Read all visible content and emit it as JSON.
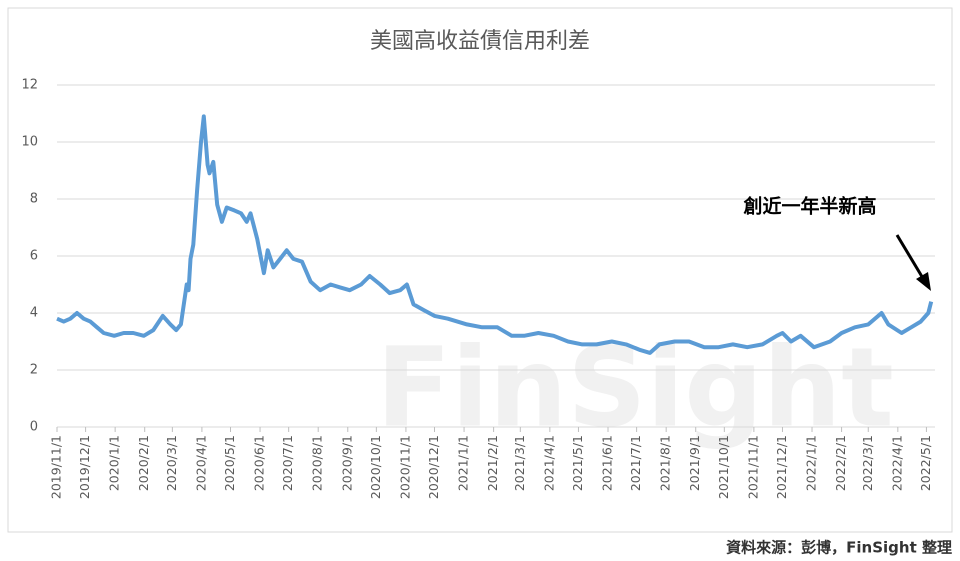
{
  "chart_data": {
    "type": "line",
    "title": "美國高收益債信用利差",
    "annotation": "創近一年半新高",
    "source": "資料來源：彭博，FinSight 整理",
    "watermark": "FinSight",
    "xlim": [
      "2019/11/1",
      "2022/5/10"
    ],
    "xticks": [
      "2019/11/1",
      "2019/12/1",
      "2020/1/1",
      "2020/2/1",
      "2020/3/1",
      "2020/4/1",
      "2020/5/1",
      "2020/6/1",
      "2020/7/1",
      "2020/8/1",
      "2020/9/1",
      "2020/10/1",
      "2020/11/1",
      "2020/12/1",
      "2021/1/1",
      "2021/2/1",
      "2021/3/1",
      "2021/4/1",
      "2021/5/1",
      "2021/6/1",
      "2021/7/1",
      "2021/8/1",
      "2021/9/1",
      "2021/10/1",
      "2021/11/1",
      "2021/12/1",
      "2022/1/1",
      "2022/2/1",
      "2022/3/1",
      "2022/4/1",
      "2022/5/1"
    ],
    "ylim": [
      0,
      12
    ],
    "yticks": [
      0,
      2,
      4,
      6,
      8,
      10,
      12
    ],
    "grid": true,
    "x": [
      "2019/11/1",
      "2019/11/8",
      "2019/11/15",
      "2019/11/22",
      "2019/11/29",
      "2019/12/6",
      "2019/12/13",
      "2019/12/20",
      "2019/12/31",
      "2020/1/10",
      "2020/1/20",
      "2020/1/31",
      "2020/2/10",
      "2020/2/20",
      "2020/2/28",
      "2020/3/5",
      "2020/3/10",
      "2020/3/13",
      "2020/3/16",
      "2020/3/18",
      "2020/3/20",
      "2020/3/23",
      "2020/3/27",
      "2020/3/31",
      "2020/4/3",
      "2020/4/7",
      "2020/4/9",
      "2020/4/13",
      "2020/4/17",
      "2020/4/22",
      "2020/4/27",
      "2020/5/5",
      "2020/5/12",
      "2020/5/18",
      "2020/5/22",
      "2020/5/29",
      "2020/6/5",
      "2020/6/9",
      "2020/6/15",
      "2020/6/22",
      "2020/6/29",
      "2020/7/6",
      "2020/7/15",
      "2020/7/24",
      "2020/8/3",
      "2020/8/14",
      "2020/8/24",
      "2020/9/3",
      "2020/9/15",
      "2020/9/24",
      "2020/10/5",
      "2020/10/15",
      "2020/10/26",
      "2020/11/2",
      "2020/11/9",
      "2020/11/20",
      "2020/12/1",
      "2020/12/15",
      "2021/1/4",
      "2021/1/20",
      "2021/2/5",
      "2021/2/20",
      "2021/3/5",
      "2021/3/20",
      "2021/4/5",
      "2021/4/20",
      "2021/5/5",
      "2021/5/20",
      "2021/6/5",
      "2021/6/20",
      "2021/7/5",
      "2021/7/15",
      "2021/7/25",
      "2021/8/10",
      "2021/8/25",
      "2021/9/10",
      "2021/9/25",
      "2021/10/10",
      "2021/10/25",
      "2021/11/10",
      "2021/11/25",
      "2021/12/1",
      "2021/12/10",
      "2021/12/20",
      "2022/1/3",
      "2022/1/20",
      "2022/2/1",
      "2022/2/15",
      "2022/3/1",
      "2022/3/15",
      "2022/3/22",
      "2022/4/5",
      "2022/4/15",
      "2022/4/25",
      "2022/5/3",
      "2022/5/6"
    ],
    "series": [
      {
        "color": "#5b9bd5",
        "values": [
          3.8,
          3.7,
          3.8,
          4.0,
          3.8,
          3.7,
          3.5,
          3.3,
          3.2,
          3.3,
          3.3,
          3.2,
          3.4,
          3.9,
          3.6,
          3.4,
          3.6,
          4.3,
          5.0,
          4.8,
          5.9,
          6.4,
          8.3,
          10.0,
          10.9,
          9.2,
          8.9,
          9.3,
          7.8,
          7.2,
          7.7,
          7.6,
          7.5,
          7.2,
          7.5,
          6.6,
          5.4,
          6.2,
          5.6,
          5.9,
          6.2,
          5.9,
          5.8,
          5.1,
          4.8,
          5.0,
          4.9,
          4.8,
          5.0,
          5.3,
          5.0,
          4.7,
          4.8,
          5.0,
          4.3,
          4.1,
          3.9,
          3.8,
          3.6,
          3.5,
          3.5,
          3.2,
          3.2,
          3.3,
          3.2,
          3.0,
          2.9,
          2.9,
          3.0,
          2.9,
          2.7,
          2.6,
          2.9,
          3.0,
          3.0,
          2.8,
          2.8,
          2.9,
          2.8,
          2.9,
          3.2,
          3.3,
          3.0,
          3.2,
          2.8,
          3.0,
          3.3,
          3.5,
          3.6,
          4.0,
          3.6,
          3.3,
          3.5,
          3.7,
          4.0,
          4.4
        ]
      }
    ]
  }
}
